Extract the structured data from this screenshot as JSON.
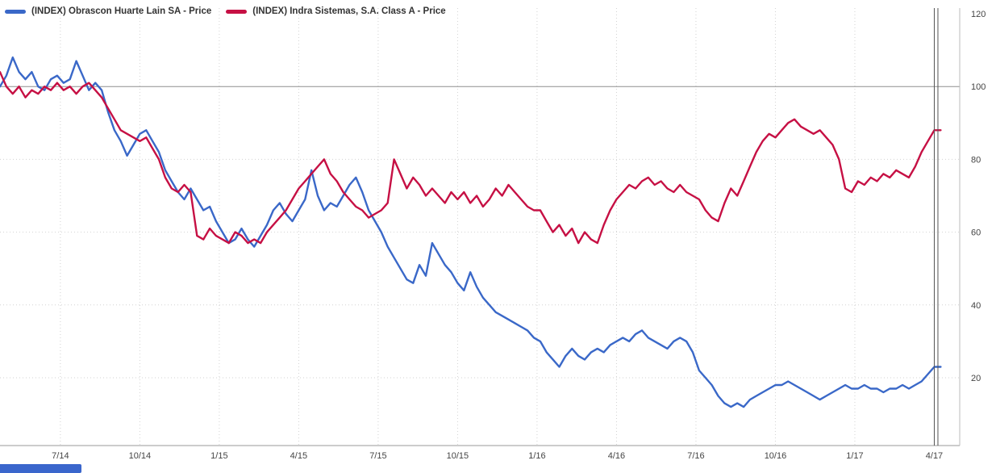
{
  "legend": {
    "series": [
      {
        "label": "(INDEX) Obrascon Huarte Lain SA - Price",
        "color": "#3a68c8"
      },
      {
        "label": "(INDEX) Indra Sistemas, S.A. Class A - Price",
        "color": "#c61044"
      }
    ]
  },
  "scrollbar": {
    "color": "#3a66cc"
  },
  "chart_data": {
    "type": "line",
    "title": "",
    "x_unit": "decimal_year",
    "xlim": [
      2014.31,
      2017.33
    ],
    "ylim": [
      0,
      123
    ],
    "y_ticks": [
      120,
      100,
      80,
      60,
      40,
      20
    ],
    "reference_line": 100,
    "crosshair_x": 2017.25,
    "grid": "dotted",
    "legend_position": "top-left",
    "x_ticks": [
      {
        "label": "7/14",
        "t": 2014.5
      },
      {
        "label": "10/14",
        "t": 2014.75
      },
      {
        "label": "1/15",
        "t": 2015.0
      },
      {
        "label": "4/15",
        "t": 2015.25
      },
      {
        "label": "7/15",
        "t": 2015.5
      },
      {
        "label": "10/15",
        "t": 2015.75
      },
      {
        "label": "1/16",
        "t": 2016.0
      },
      {
        "label": "4/16",
        "t": 2016.25
      },
      {
        "label": "7/16",
        "t": 2016.5
      },
      {
        "label": "10/16",
        "t": 2016.75
      },
      {
        "label": "1/17",
        "t": 2017.0
      },
      {
        "label": "4/17",
        "t": 2017.25
      }
    ],
    "series": [
      {
        "name": "(INDEX) Obrascon Huarte Lain SA - Price",
        "color": "#3a68c8",
        "points": [
          [
            2014.31,
            100
          ],
          [
            2014.33,
            103
          ],
          [
            2014.35,
            108
          ],
          [
            2014.37,
            104
          ],
          [
            2014.39,
            102
          ],
          [
            2014.41,
            104
          ],
          [
            2014.43,
            100
          ],
          [
            2014.45,
            99
          ],
          [
            2014.47,
            102
          ],
          [
            2014.49,
            103
          ],
          [
            2014.51,
            101
          ],
          [
            2014.53,
            102
          ],
          [
            2014.55,
            107
          ],
          [
            2014.57,
            103
          ],
          [
            2014.59,
            99
          ],
          [
            2014.61,
            101
          ],
          [
            2014.63,
            99
          ],
          [
            2014.65,
            93
          ],
          [
            2014.67,
            88
          ],
          [
            2014.69,
            85
          ],
          [
            2014.71,
            81
          ],
          [
            2014.73,
            84
          ],
          [
            2014.75,
            87
          ],
          [
            2014.77,
            88
          ],
          [
            2014.79,
            85
          ],
          [
            2014.81,
            82
          ],
          [
            2014.83,
            77
          ],
          [
            2014.85,
            74
          ],
          [
            2014.87,
            71
          ],
          [
            2014.89,
            69
          ],
          [
            2014.91,
            72
          ],
          [
            2014.93,
            69
          ],
          [
            2014.95,
            66
          ],
          [
            2014.97,
            67
          ],
          [
            2014.99,
            63
          ],
          [
            2015.01,
            60
          ],
          [
            2015.03,
            57
          ],
          [
            2015.05,
            58
          ],
          [
            2015.07,
            61
          ],
          [
            2015.09,
            58
          ],
          [
            2015.11,
            56
          ],
          [
            2015.13,
            59
          ],
          [
            2015.15,
            62
          ],
          [
            2015.17,
            66
          ],
          [
            2015.19,
            68
          ],
          [
            2015.21,
            65
          ],
          [
            2015.23,
            63
          ],
          [
            2015.25,
            66
          ],
          [
            2015.27,
            69
          ],
          [
            2015.29,
            77
          ],
          [
            2015.31,
            70
          ],
          [
            2015.33,
            66
          ],
          [
            2015.35,
            68
          ],
          [
            2015.37,
            67
          ],
          [
            2015.39,
            70
          ],
          [
            2015.41,
            73
          ],
          [
            2015.43,
            75
          ],
          [
            2015.45,
            71
          ],
          [
            2015.47,
            66
          ],
          [
            2015.49,
            63
          ],
          [
            2015.51,
            60
          ],
          [
            2015.53,
            56
          ],
          [
            2015.55,
            53
          ],
          [
            2015.57,
            50
          ],
          [
            2015.59,
            47
          ],
          [
            2015.61,
            46
          ],
          [
            2015.63,
            51
          ],
          [
            2015.65,
            48
          ],
          [
            2015.67,
            57
          ],
          [
            2015.69,
            54
          ],
          [
            2015.71,
            51
          ],
          [
            2015.73,
            49
          ],
          [
            2015.75,
            46
          ],
          [
            2015.77,
            44
          ],
          [
            2015.79,
            49
          ],
          [
            2015.81,
            45
          ],
          [
            2015.83,
            42
          ],
          [
            2015.85,
            40
          ],
          [
            2015.87,
            38
          ],
          [
            2015.89,
            37
          ],
          [
            2015.91,
            36
          ],
          [
            2015.93,
            35
          ],
          [
            2015.95,
            34
          ],
          [
            2015.97,
            33
          ],
          [
            2015.99,
            31
          ],
          [
            2016.01,
            30
          ],
          [
            2016.03,
            27
          ],
          [
            2016.05,
            25
          ],
          [
            2016.07,
            23
          ],
          [
            2016.09,
            26
          ],
          [
            2016.11,
            28
          ],
          [
            2016.13,
            26
          ],
          [
            2016.15,
            25
          ],
          [
            2016.17,
            27
          ],
          [
            2016.19,
            28
          ],
          [
            2016.21,
            27
          ],
          [
            2016.23,
            29
          ],
          [
            2016.25,
            30
          ],
          [
            2016.27,
            31
          ],
          [
            2016.29,
            30
          ],
          [
            2016.31,
            32
          ],
          [
            2016.33,
            33
          ],
          [
            2016.35,
            31
          ],
          [
            2016.37,
            30
          ],
          [
            2016.39,
            29
          ],
          [
            2016.41,
            28
          ],
          [
            2016.43,
            30
          ],
          [
            2016.45,
            31
          ],
          [
            2016.47,
            30
          ],
          [
            2016.49,
            27
          ],
          [
            2016.51,
            22
          ],
          [
            2016.53,
            20
          ],
          [
            2016.55,
            18
          ],
          [
            2016.57,
            15
          ],
          [
            2016.59,
            13
          ],
          [
            2016.61,
            12
          ],
          [
            2016.63,
            13
          ],
          [
            2016.65,
            12
          ],
          [
            2016.67,
            14
          ],
          [
            2016.69,
            15
          ],
          [
            2016.71,
            16
          ],
          [
            2016.73,
            17
          ],
          [
            2016.75,
            18
          ],
          [
            2016.77,
            18
          ],
          [
            2016.79,
            19
          ],
          [
            2016.81,
            18
          ],
          [
            2016.83,
            17
          ],
          [
            2016.85,
            16
          ],
          [
            2016.87,
            15
          ],
          [
            2016.89,
            14
          ],
          [
            2016.91,
            15
          ],
          [
            2016.93,
            16
          ],
          [
            2016.95,
            17
          ],
          [
            2016.97,
            18
          ],
          [
            2016.99,
            17
          ],
          [
            2017.01,
            17
          ],
          [
            2017.03,
            18
          ],
          [
            2017.05,
            17
          ],
          [
            2017.07,
            17
          ],
          [
            2017.09,
            16
          ],
          [
            2017.11,
            17
          ],
          [
            2017.13,
            17
          ],
          [
            2017.15,
            18
          ],
          [
            2017.17,
            17
          ],
          [
            2017.19,
            18
          ],
          [
            2017.21,
            19
          ],
          [
            2017.23,
            21
          ],
          [
            2017.25,
            23
          ],
          [
            2017.27,
            23
          ]
        ]
      },
      {
        "name": "(INDEX) Indra Sistemas, S.A. Class A - Price",
        "color": "#c61044",
        "points": [
          [
            2014.31,
            104
          ],
          [
            2014.33,
            100
          ],
          [
            2014.35,
            98
          ],
          [
            2014.37,
            100
          ],
          [
            2014.39,
            97
          ],
          [
            2014.41,
            99
          ],
          [
            2014.43,
            98
          ],
          [
            2014.45,
            100
          ],
          [
            2014.47,
            99
          ],
          [
            2014.49,
            101
          ],
          [
            2014.51,
            99
          ],
          [
            2014.53,
            100
          ],
          [
            2014.55,
            98
          ],
          [
            2014.57,
            100
          ],
          [
            2014.59,
            101
          ],
          [
            2014.61,
            99
          ],
          [
            2014.63,
            97
          ],
          [
            2014.65,
            94
          ],
          [
            2014.67,
            91
          ],
          [
            2014.69,
            88
          ],
          [
            2014.71,
            87
          ],
          [
            2014.73,
            86
          ],
          [
            2014.75,
            85
          ],
          [
            2014.77,
            86
          ],
          [
            2014.79,
            83
          ],
          [
            2014.81,
            80
          ],
          [
            2014.83,
            75
          ],
          [
            2014.85,
            72
          ],
          [
            2014.87,
            71
          ],
          [
            2014.89,
            73
          ],
          [
            2014.91,
            71
          ],
          [
            2014.93,
            59
          ],
          [
            2014.95,
            58
          ],
          [
            2014.97,
            61
          ],
          [
            2014.99,
            59
          ],
          [
            2015.01,
            58
          ],
          [
            2015.03,
            57
          ],
          [
            2015.05,
            60
          ],
          [
            2015.07,
            59
          ],
          [
            2015.09,
            57
          ],
          [
            2015.11,
            58
          ],
          [
            2015.13,
            57
          ],
          [
            2015.15,
            60
          ],
          [
            2015.17,
            62
          ],
          [
            2015.19,
            64
          ],
          [
            2015.21,
            66
          ],
          [
            2015.23,
            69
          ],
          [
            2015.25,
            72
          ],
          [
            2015.27,
            74
          ],
          [
            2015.29,
            76
          ],
          [
            2015.31,
            78
          ],
          [
            2015.33,
            80
          ],
          [
            2015.35,
            76
          ],
          [
            2015.37,
            74
          ],
          [
            2015.39,
            71
          ],
          [
            2015.41,
            69
          ],
          [
            2015.43,
            67
          ],
          [
            2015.45,
            66
          ],
          [
            2015.47,
            64
          ],
          [
            2015.49,
            65
          ],
          [
            2015.51,
            66
          ],
          [
            2015.53,
            68
          ],
          [
            2015.55,
            80
          ],
          [
            2015.57,
            76
          ],
          [
            2015.59,
            72
          ],
          [
            2015.61,
            75
          ],
          [
            2015.63,
            73
          ],
          [
            2015.65,
            70
          ],
          [
            2015.67,
            72
          ],
          [
            2015.69,
            70
          ],
          [
            2015.71,
            68
          ],
          [
            2015.73,
            71
          ],
          [
            2015.75,
            69
          ],
          [
            2015.77,
            71
          ],
          [
            2015.79,
            68
          ],
          [
            2015.81,
            70
          ],
          [
            2015.83,
            67
          ],
          [
            2015.85,
            69
          ],
          [
            2015.87,
            72
          ],
          [
            2015.89,
            70
          ],
          [
            2015.91,
            73
          ],
          [
            2015.93,
            71
          ],
          [
            2015.95,
            69
          ],
          [
            2015.97,
            67
          ],
          [
            2015.99,
            66
          ],
          [
            2016.01,
            66
          ],
          [
            2016.03,
            63
          ],
          [
            2016.05,
            60
          ],
          [
            2016.07,
            62
          ],
          [
            2016.09,
            59
          ],
          [
            2016.11,
            61
          ],
          [
            2016.13,
            57
          ],
          [
            2016.15,
            60
          ],
          [
            2016.17,
            58
          ],
          [
            2016.19,
            57
          ],
          [
            2016.21,
            62
          ],
          [
            2016.23,
            66
          ],
          [
            2016.25,
            69
          ],
          [
            2016.27,
            71
          ],
          [
            2016.29,
            73
          ],
          [
            2016.31,
            72
          ],
          [
            2016.33,
            74
          ],
          [
            2016.35,
            75
          ],
          [
            2016.37,
            73
          ],
          [
            2016.39,
            74
          ],
          [
            2016.41,
            72
          ],
          [
            2016.43,
            71
          ],
          [
            2016.45,
            73
          ],
          [
            2016.47,
            71
          ],
          [
            2016.49,
            70
          ],
          [
            2016.51,
            69
          ],
          [
            2016.53,
            66
          ],
          [
            2016.55,
            64
          ],
          [
            2016.57,
            63
          ],
          [
            2016.59,
            68
          ],
          [
            2016.61,
            72
          ],
          [
            2016.63,
            70
          ],
          [
            2016.65,
            74
          ],
          [
            2016.67,
            78
          ],
          [
            2016.69,
            82
          ],
          [
            2016.71,
            85
          ],
          [
            2016.73,
            87
          ],
          [
            2016.75,
            86
          ],
          [
            2016.77,
            88
          ],
          [
            2016.79,
            90
          ],
          [
            2016.81,
            91
          ],
          [
            2016.83,
            89
          ],
          [
            2016.85,
            88
          ],
          [
            2016.87,
            87
          ],
          [
            2016.89,
            88
          ],
          [
            2016.91,
            86
          ],
          [
            2016.93,
            84
          ],
          [
            2016.95,
            80
          ],
          [
            2016.97,
            72
          ],
          [
            2016.99,
            71
          ],
          [
            2017.01,
            74
          ],
          [
            2017.03,
            73
          ],
          [
            2017.05,
            75
          ],
          [
            2017.07,
            74
          ],
          [
            2017.09,
            76
          ],
          [
            2017.11,
            75
          ],
          [
            2017.13,
            77
          ],
          [
            2017.15,
            76
          ],
          [
            2017.17,
            75
          ],
          [
            2017.19,
            78
          ],
          [
            2017.21,
            82
          ],
          [
            2017.23,
            85
          ],
          [
            2017.25,
            88
          ],
          [
            2017.27,
            88
          ]
        ]
      }
    ]
  }
}
